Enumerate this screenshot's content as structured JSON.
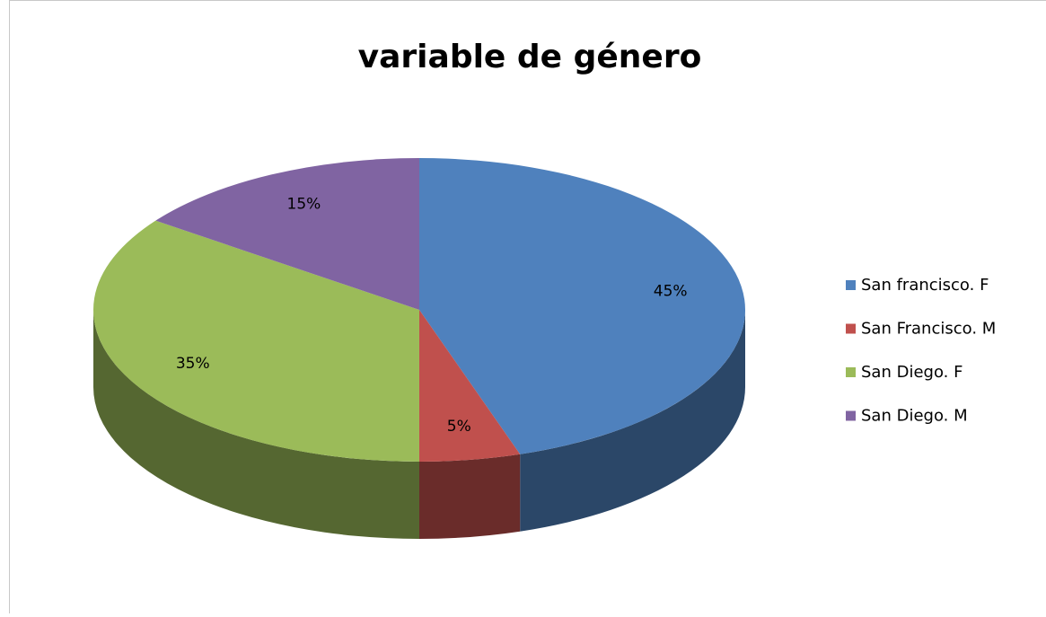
{
  "chart_data": {
    "type": "pie",
    "title": "variable de género",
    "categories": [
      "San francisco. F",
      "San Francisco. M",
      "San Diego. F",
      "San Diego. M"
    ],
    "values": [
      45,
      5,
      35,
      15
    ],
    "value_labels": [
      "45%",
      "5%",
      "35%",
      "15%"
    ],
    "colors": [
      "#4f81bd",
      "#c0504d",
      "#9bbb59",
      "#8064a2"
    ],
    "legend": "right"
  }
}
